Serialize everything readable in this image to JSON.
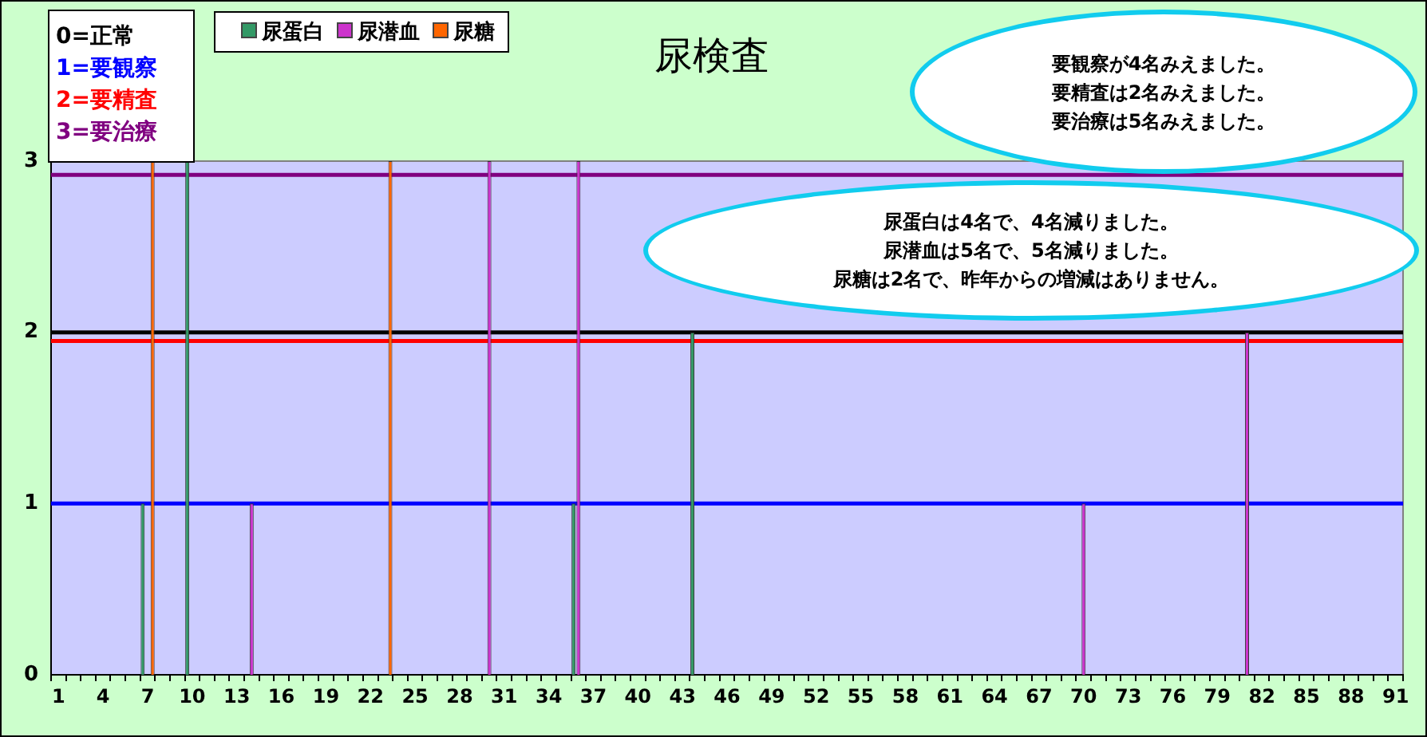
{
  "chart_data": {
    "type": "bar",
    "title": "尿検査",
    "categories": [
      "1",
      null,
      null,
      "4",
      null,
      null,
      "7",
      null,
      null,
      "10",
      null,
      null,
      "13",
      null,
      null,
      "16",
      null,
      null,
      "19",
      null,
      null,
      "22",
      null,
      null,
      "25",
      null,
      null,
      "28",
      null,
      null,
      "31",
      null,
      null,
      "34",
      null,
      null,
      "37",
      null,
      null,
      "40",
      null,
      null,
      "43",
      null,
      null,
      "46",
      null,
      null,
      "49",
      null,
      null,
      "52",
      null,
      null,
      "55",
      null,
      null,
      "58",
      null,
      null,
      "61",
      null,
      null,
      "64",
      null,
      null,
      "67",
      null,
      null,
      "70",
      null,
      null,
      "73",
      null,
      null,
      "76",
      null,
      null,
      "79",
      null,
      null,
      "82",
      null,
      null,
      "85",
      null,
      null,
      "88",
      null,
      null,
      "91"
    ],
    "series": [
      {
        "name": "尿蛋白",
        "color": "#339966",
        "values": [
          0,
          0,
          0,
          0,
          0,
          0,
          1,
          0,
          0,
          3,
          0,
          0,
          0,
          0,
          0,
          0,
          0,
          0,
          0,
          0,
          0,
          0,
          0,
          0,
          0,
          0,
          0,
          0,
          0,
          0,
          0,
          0,
          0,
          0,
          0,
          1,
          0,
          0,
          0,
          0,
          0,
          0,
          0,
          2,
          0,
          0,
          0,
          0,
          0,
          0,
          0,
          0,
          0,
          0,
          0,
          0,
          0,
          0,
          0,
          0,
          0,
          0,
          0,
          0,
          0,
          0,
          0,
          0,
          0,
          0,
          0,
          0,
          0,
          0,
          0,
          0,
          0,
          0,
          0,
          0,
          0,
          0,
          0,
          0,
          0,
          0,
          0,
          0,
          0,
          0,
          0
        ]
      },
      {
        "name": "尿潜血",
        "color": "#cc33cc",
        "values": [
          0,
          0,
          0,
          0,
          0,
          0,
          0,
          0,
          0,
          0,
          0,
          0,
          0,
          1,
          0,
          0,
          0,
          0,
          0,
          0,
          0,
          0,
          0,
          0,
          0,
          0,
          0,
          0,
          0,
          3,
          0,
          0,
          0,
          0,
          0,
          3,
          0,
          0,
          0,
          0,
          0,
          0,
          0,
          0,
          0,
          0,
          0,
          0,
          0,
          0,
          0,
          0,
          0,
          0,
          0,
          0,
          0,
          0,
          0,
          0,
          0,
          0,
          0,
          0,
          0,
          0,
          0,
          0,
          0,
          1,
          0,
          0,
          0,
          0,
          0,
          0,
          0,
          0,
          0,
          0,
          2,
          0,
          0,
          0,
          0,
          0,
          0,
          0,
          0,
          0,
          0
        ]
      },
      {
        "name": "尿糖",
        "color": "#ff6600",
        "values": [
          0,
          0,
          0,
          0,
          0,
          0,
          3,
          0,
          0,
          0,
          0,
          0,
          0,
          0,
          0,
          0,
          0,
          0,
          0,
          0,
          0,
          0,
          3,
          0,
          0,
          0,
          0,
          0,
          0,
          0,
          0,
          0,
          0,
          0,
          0,
          0,
          0,
          0,
          0,
          0,
          0,
          0,
          0,
          0,
          0,
          0,
          0,
          0,
          0,
          0,
          0,
          0,
          0,
          0,
          0,
          0,
          0,
          0,
          0,
          0,
          0,
          0,
          0,
          0,
          0,
          0,
          0,
          0,
          0,
          0,
          0,
          0,
          0,
          0,
          0,
          0,
          0,
          0,
          0,
          0,
          0,
          0,
          0,
          0,
          0,
          0,
          0,
          0,
          0,
          0,
          0
        ]
      }
    ],
    "ylim": [
      0,
      3
    ],
    "yticks": [
      0,
      1,
      2,
      3
    ],
    "legend": "top left",
    "ref_lines": [
      {
        "axis": "y",
        "value": 2,
        "color": "#000000"
      },
      {
        "axis": "y",
        "value": 1,
        "color": "#0000ff"
      },
      {
        "axis": "y",
        "value": 1.95,
        "color": "#ff0000"
      },
      {
        "axis": "y",
        "value": 2.92,
        "color": "#800080"
      }
    ],
    "annotations": [
      "0=正常",
      "1=要観察",
      "2=要精査",
      "3=要治療",
      "要観察が4名みえました。",
      "要精査は2名みえました。",
      "要治療は5名みえました。",
      "尿蛋白は4名で、4名減りました。",
      "尿潜血は5名で、5名減りました。",
      "尿糖は2名で、昨年からの増減はありません。"
    ]
  }
}
